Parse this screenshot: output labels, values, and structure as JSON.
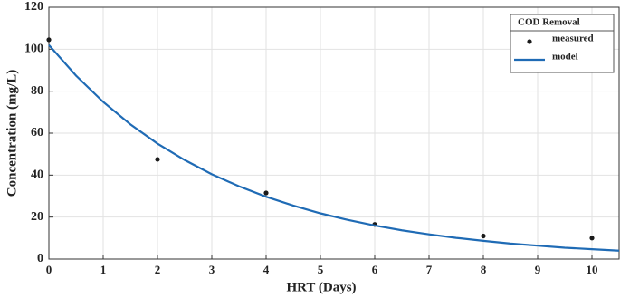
{
  "chart_data": {
    "type": "scatter",
    "xlabel": "HRT (Days)",
    "ylabel": "Concentration (mg/L)",
    "xlim": [
      0,
      10.5
    ],
    "xticks": [
      0,
      1,
      2,
      3,
      4,
      5,
      6,
      7,
      8,
      9,
      10
    ],
    "ylim": [
      0,
      120
    ],
    "yticks": [
      0,
      20,
      40,
      60,
      80,
      100,
      120
    ],
    "grid": true,
    "legend_title": "COD Removal",
    "legend": "upper right",
    "series": [
      {
        "name": "measured",
        "type": "scatter",
        "color": "#1a1a1a",
        "x": [
          0,
          2,
          4,
          6,
          8,
          10
        ],
        "values": [
          104.5,
          47.5,
          31.5,
          16.5,
          11,
          10
        ]
      },
      {
        "name": "model",
        "type": "line",
        "color": "#1f6bb5",
        "x": [
          0,
          0.5,
          1,
          1.5,
          2,
          2.5,
          3,
          3.5,
          4,
          4.5,
          5,
          5.5,
          6,
          6.5,
          7,
          7.5,
          8,
          8.5,
          9,
          9.5,
          10,
          10.5
        ],
        "values": [
          102,
          87.4,
          74.9,
          64.2,
          55.0,
          47.2,
          40.4,
          34.7,
          29.7,
          25.5,
          21.8,
          18.7,
          16.0,
          13.7,
          11.8,
          10.1,
          8.7,
          7.4,
          6.4,
          5.4,
          4.7,
          4.0
        ]
      }
    ]
  }
}
